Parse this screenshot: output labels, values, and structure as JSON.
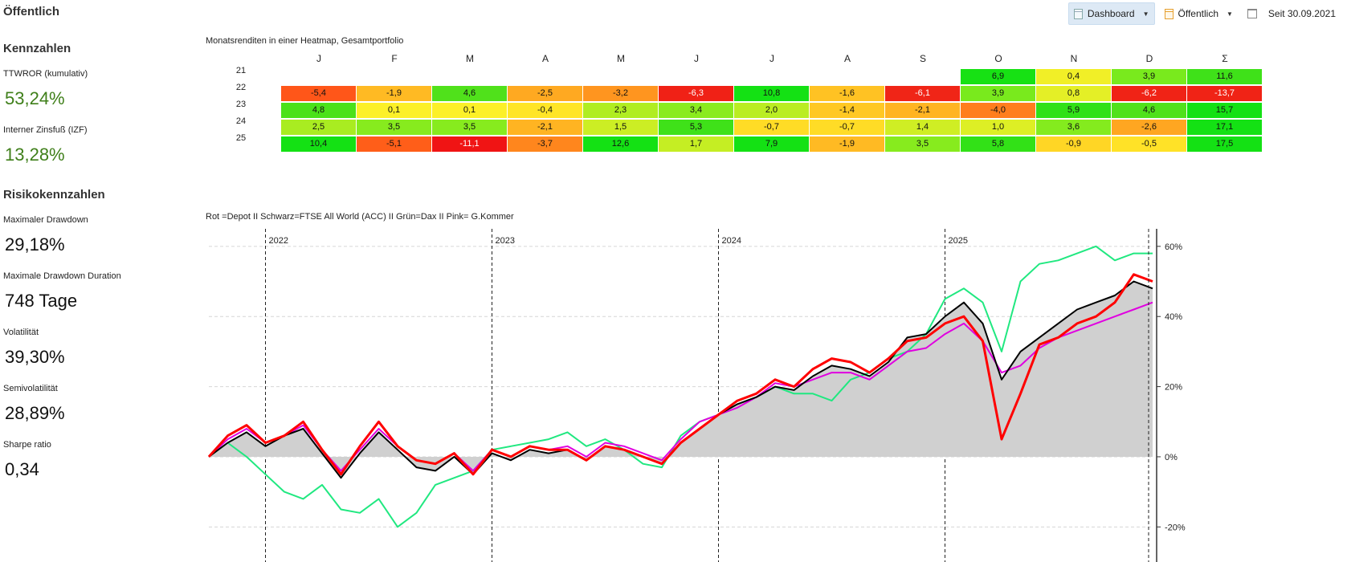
{
  "page_title": "Öffentlich",
  "toolbar": {
    "dashboard_label": "Dashboard",
    "visibility_label": "Öffentlich",
    "since_label": "Seit 30.09.2021",
    "icons": [
      "document-icon",
      "chevron-down-icon",
      "calendar-icon"
    ]
  },
  "kennzahlen": {
    "heading": "Kennzahlen",
    "items": [
      {
        "label": "TTWROR (kumulativ)",
        "value": "53,24%"
      },
      {
        "label": "Interner Zinsfuß (IZF)",
        "value": "13,28%"
      }
    ]
  },
  "risiko": {
    "heading": "Risikokennzahlen",
    "items": [
      {
        "label": "Maximaler Drawdown",
        "value": "29,18%"
      },
      {
        "label": "Maximale Drawdown Duration",
        "value": "748 Tage"
      },
      {
        "label": "Volatilität",
        "value": "39,30%"
      },
      {
        "label": "Semivolatilität",
        "value": "28,89%"
      },
      {
        "label": "Sharpe ratio",
        "value": "0,34"
      }
    ]
  },
  "heatmap": {
    "title": "Monatsrenditen in einer Heatmap, Gesamtportfolio",
    "columns": [
      "J",
      "F",
      "M",
      "A",
      "M",
      "J",
      "J",
      "A",
      "S",
      "O",
      "N",
      "D",
      "Σ"
    ],
    "rows": [
      {
        "year": "21",
        "values": [
          "",
          "",
          "",
          "",
          "",
          "",
          "",
          "",
          "",
          "6,9",
          "0,4",
          "3,9",
          "11,6"
        ]
      },
      {
        "year": "22",
        "values": [
          "-5,4",
          "-1,9",
          "4,6",
          "-2,5",
          "-3,2",
          "-6,3",
          "10,8",
          "-1,6",
          "-6,1",
          "3,9",
          "0,8",
          "-6,2",
          "-13,7"
        ]
      },
      {
        "year": "23",
        "values": [
          "4,8",
          "0,1",
          "0,1",
          "-0,4",
          "2,3",
          "3,4",
          "2,0",
          "-1,4",
          "-2,1",
          "-4,0",
          "5,9",
          "4,6",
          "15,7"
        ]
      },
      {
        "year": "24",
        "values": [
          "2,5",
          "3,5",
          "3,5",
          "-2,1",
          "1,5",
          "5,3",
          "-0,7",
          "-0,7",
          "1,4",
          "1,0",
          "3,6",
          "-2,6",
          "17,1"
        ]
      },
      {
        "year": "25",
        "values": [
          "10,4",
          "-5,1",
          "-11,1",
          "-3,7",
          "12,6",
          "1,7",
          "7,9",
          "-1,9",
          "3,5",
          "5,8",
          "-0,9",
          "-0,5",
          "17,5"
        ]
      }
    ]
  },
  "chart_data": {
    "type": "line",
    "title": "Rot =Depot II Schwarz=FTSE All World (ACC) II Grün=Dax II Pink= G.Kommer",
    "year_labels": [
      "2022",
      "2023",
      "2024",
      "2025"
    ],
    "y_tick_labels": [
      "60%",
      "40%",
      "20%",
      "0%",
      "-20%"
    ],
    "ylim": [
      -30,
      65
    ],
    "y_ticks": [
      60,
      40,
      20,
      0,
      -20
    ],
    "x_start": "2021-10",
    "x": [
      "2021-10",
      "2021-11",
      "2021-12",
      "2022-01",
      "2022-02",
      "2022-03",
      "2022-04",
      "2022-05",
      "2022-06",
      "2022-07",
      "2022-08",
      "2022-09",
      "2022-10",
      "2022-11",
      "2022-12",
      "2023-01",
      "2023-02",
      "2023-03",
      "2023-04",
      "2023-05",
      "2023-06",
      "2023-07",
      "2023-08",
      "2023-09",
      "2023-10",
      "2023-11",
      "2023-12",
      "2024-01",
      "2024-02",
      "2024-03",
      "2024-04",
      "2024-05",
      "2024-06",
      "2024-07",
      "2024-08",
      "2024-09",
      "2024-10",
      "2024-11",
      "2024-12",
      "2025-01",
      "2025-02",
      "2025-03",
      "2025-04",
      "2025-05",
      "2025-06",
      "2025-07",
      "2025-08",
      "2025-09",
      "2025-10",
      "2025-11",
      "2025-12"
    ],
    "series": [
      {
        "name": "Depot",
        "color": "#ff0000",
        "values": [
          0,
          6,
          9,
          4,
          6,
          10,
          2,
          -5,
          3,
          10,
          3,
          -1,
          -2,
          1,
          -5,
          2,
          0,
          3,
          2,
          2,
          -1,
          3,
          2,
          0,
          -2,
          4,
          8,
          12,
          16,
          18,
          22,
          20,
          25,
          28,
          27,
          24,
          28,
          33,
          34,
          38,
          40,
          33,
          5,
          18,
          32,
          34,
          38,
          40,
          44,
          52,
          50
        ]
      },
      {
        "name": "FTSE All World (ACC)",
        "color": "#000000",
        "values": [
          0,
          4,
          7,
          3,
          6,
          8,
          1,
          -6,
          1,
          7,
          2,
          -3,
          -4,
          0,
          -5,
          1,
          -1,
          2,
          1,
          2,
          -1,
          3,
          2,
          0,
          -2,
          4,
          8,
          12,
          15,
          17,
          20,
          19,
          23,
          26,
          25,
          23,
          27,
          34,
          35,
          40,
          44,
          38,
          22,
          30,
          34,
          38,
          42,
          44,
          46,
          50,
          48
        ]
      },
      {
        "name": "Dax",
        "color": "#20e880",
        "values": [
          0,
          4,
          0,
          -5,
          -10,
          -12,
          -8,
          -15,
          -16,
          -12,
          -20,
          -16,
          -8,
          -6,
          -4,
          2,
          3,
          4,
          5,
          7,
          3,
          5,
          2,
          -2,
          -3,
          6,
          10,
          12,
          15,
          17,
          20,
          18,
          18,
          16,
          22,
          24,
          28,
          30,
          35,
          45,
          48,
          44,
          30,
          50,
          55,
          56,
          58,
          60,
          56,
          58,
          58
        ]
      },
      {
        "name": "G.Kommer",
        "color": "#e000e0",
        "values": [
          0,
          5,
          8,
          4,
          6,
          9,
          2,
          -4,
          2,
          8,
          3,
          -1,
          -2,
          1,
          -4,
          2,
          0,
          3,
          2,
          3,
          0,
          4,
          3,
          1,
          -1,
          5,
          10,
          12,
          14,
          17,
          21,
          20,
          22,
          24,
          24,
          22,
          26,
          30,
          31,
          35,
          38,
          33,
          24,
          26,
          31,
          34,
          36,
          38,
          40,
          42,
          44
        ]
      }
    ],
    "grid": true,
    "legend": "none"
  }
}
